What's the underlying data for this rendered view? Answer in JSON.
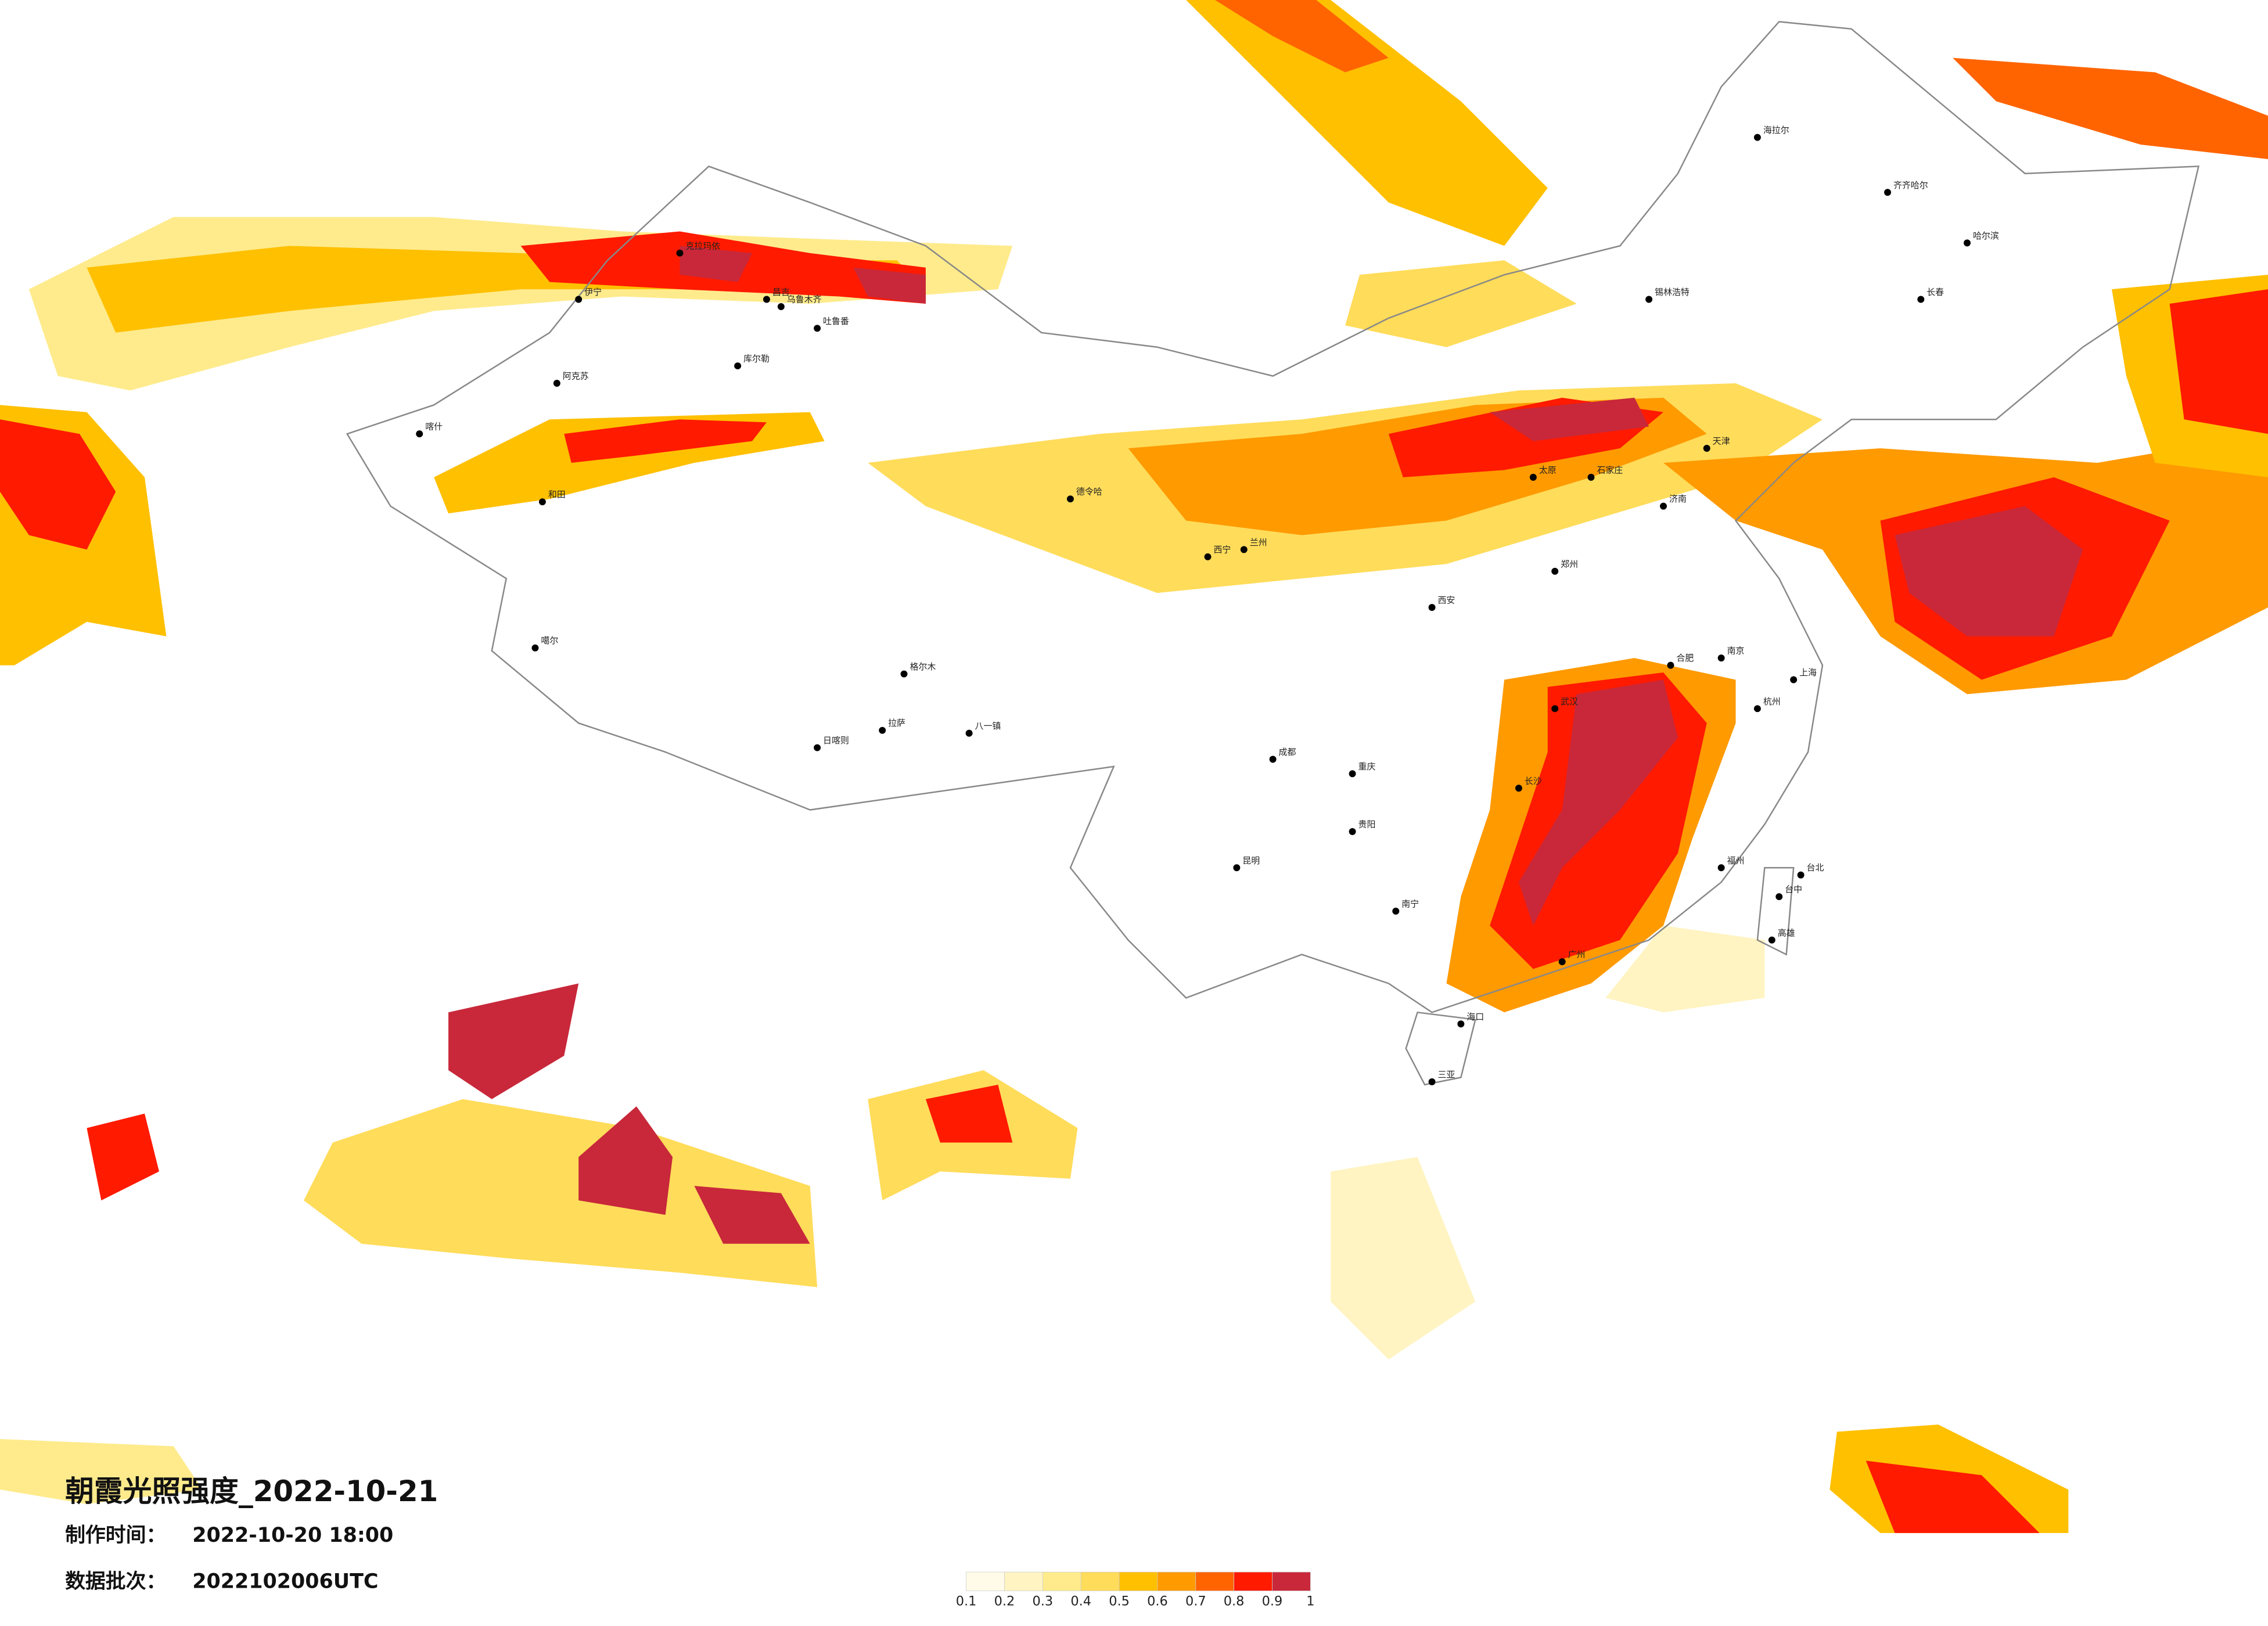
{
  "title": "朝霞光照强度_2022-10-21",
  "made_label": "制作时间：",
  "made_time": "2022-10-20 18:00",
  "batch_label": "数据批次：",
  "batch": "2022102006UTC",
  "legend": {
    "colors": [
      "#fffbe8",
      "#fff4c2",
      "#ffeb8c",
      "#ffdc5a",
      "#ffc000",
      "#ff9a00",
      "#ff6400",
      "#ff1a00",
      "#c8283a"
    ],
    "ticks": [
      0.1,
      0.2,
      0.3,
      0.4,
      0.5,
      0.6,
      0.7,
      0.8,
      0.9,
      1
    ]
  },
  "cities": [
    "海拉尔",
    "齐齐哈尔",
    "哈尔滨",
    "长春",
    "锡林浩特",
    "伊宁",
    "克拉玛依",
    "昌吉",
    "乌鲁木齐",
    "吐鲁番",
    "库尔勒",
    "阿克苏",
    "和田",
    "喀什",
    "噶尔",
    "日喀则",
    "拉萨",
    "八一镇",
    "格尔木",
    "德令哈",
    "西宁",
    "兰州",
    "成都",
    "重庆",
    "贵阳",
    "昆明",
    "南宁",
    "海口",
    "三亚",
    "武汉",
    "长沙",
    "广州",
    "福州",
    "台北",
    "台中",
    "高雄",
    "杭州",
    "南京",
    "上海",
    "合肥",
    "济南",
    "郑州",
    "西安",
    "太原",
    "石家庄",
    "天津"
  ]
}
